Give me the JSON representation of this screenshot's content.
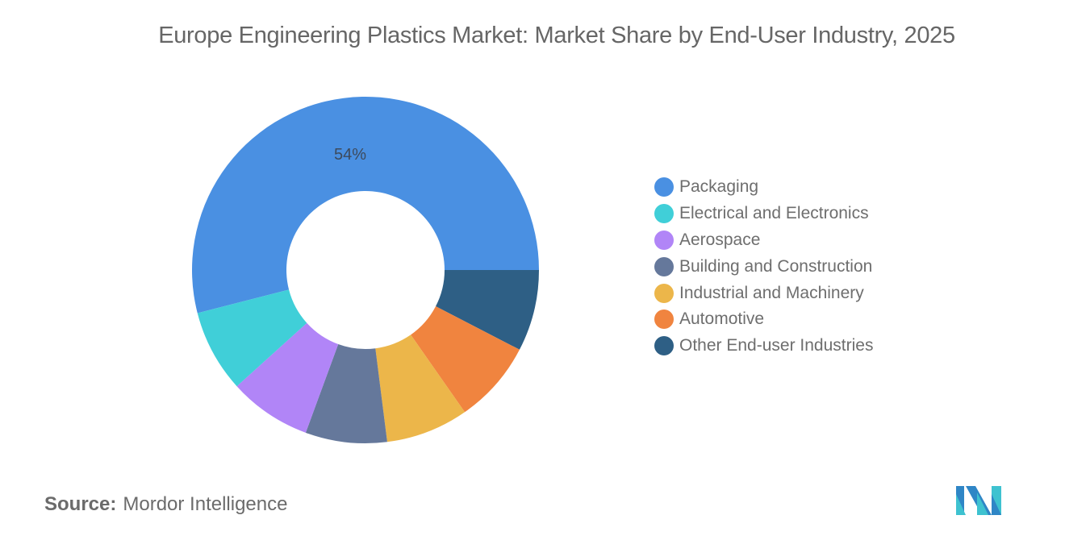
{
  "title": "Europe Engineering Plastics Market: Market Share by End-User Industry, 2025",
  "source": {
    "label": "Source:",
    "value": "Mordor Intelligence"
  },
  "logo": "mordor-intelligence-logo",
  "legend": [
    {
      "label": "Packaging",
      "color": "#4a90e2"
    },
    {
      "label": "Electrical and Electronics",
      "color": "#40cfd8"
    },
    {
      "label": "Aerospace",
      "color": "#b185f7"
    },
    {
      "label": "Building and Construction",
      "color": "#65789b"
    },
    {
      "label": "Industrial and Machinery",
      "color": "#ecb64a"
    },
    {
      "label": "Automotive",
      "color": "#f0843f"
    },
    {
      "label": "Other End-user Industries",
      "color": "#2e5f85"
    }
  ],
  "slice_labels": {
    "packaging": "54%"
  },
  "chart_data": {
    "type": "pie",
    "variant": "donut",
    "title": "Europe Engineering Plastics Market: Market Share by End-User Industry, 2025",
    "categories": [
      "Packaging",
      "Electrical and Electronics",
      "Aerospace",
      "Building and Construction",
      "Industrial and Machinery",
      "Automotive",
      "Other End-user Industries"
    ],
    "values": [
      54,
      7.7,
      7.7,
      7.6,
      7.7,
      7.7,
      7.6
    ],
    "labeled_values": {
      "Packaging": "54%"
    },
    "colors": [
      "#4a90e2",
      "#40cfd8",
      "#b185f7",
      "#65789b",
      "#ecb64a",
      "#f0843f",
      "#2e5f85"
    ],
    "legend_position": "right",
    "source": "Mordor Intelligence"
  }
}
